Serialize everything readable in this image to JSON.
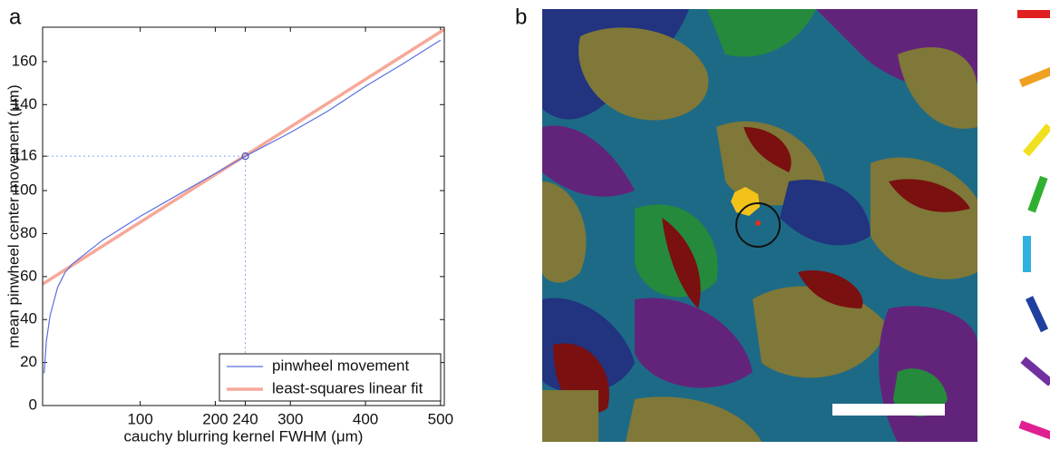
{
  "panel_labels": [
    "a",
    "b"
  ],
  "chart_data": {
    "type": "line",
    "xlabel": "cauchy blurring kernel FWHM (μm)",
    "ylabel": "mean pinwheel center movement (μm)",
    "xlim": [
      -30,
      505
    ],
    "ylim": [
      0,
      176
    ],
    "xticks": [
      100,
      200,
      240,
      300,
      400,
      500
    ],
    "yticks": [
      0,
      20,
      40,
      60,
      80,
      100,
      116,
      140,
      160
    ],
    "highlight": {
      "x": 240,
      "y": 116
    },
    "legend": "lower right",
    "series": [
      {
        "name": "pinwheel movement",
        "color": "#5a6fe0",
        "width": 1.2,
        "x": [
          -28,
          -25,
          -20,
          -10,
          0,
          10,
          50,
          100,
          150,
          200,
          240,
          300,
          350,
          400,
          450,
          500
        ],
        "values": [
          15,
          30,
          42,
          55,
          62,
          66,
          77,
          88,
          98,
          108,
          116,
          127,
          137,
          148.5,
          159,
          170
        ]
      },
      {
        "name": "least-squares linear fit",
        "color": "#f7a898",
        "width": 3.5,
        "x": [
          -30,
          505
        ],
        "values": [
          56.5,
          175
        ]
      }
    ]
  }
}
